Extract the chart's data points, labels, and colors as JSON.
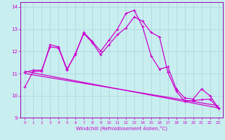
{
  "title": "",
  "xlabel": "Windchill (Refroidissement éolien,°C)",
  "ylabel": "",
  "bg_color": "#c8eef0",
  "grid_color": "#b0d8dc",
  "line_color": "#cc00cc",
  "spine_color": "#9900aa",
  "xlim": [
    -0.5,
    23.5
  ],
  "ylim": [
    9,
    14.2
  ],
  "yticks": [
    9,
    10,
    11,
    12,
    13,
    14
  ],
  "xticks": [
    0,
    1,
    2,
    3,
    4,
    5,
    6,
    7,
    8,
    9,
    10,
    11,
    12,
    13,
    14,
    15,
    16,
    17,
    18,
    19,
    20,
    21,
    22,
    23
  ],
  "series1_x": [
    0,
    1,
    2,
    3,
    4,
    5,
    6,
    7,
    8,
    9,
    10,
    11,
    12,
    13,
    14,
    15,
    16,
    17,
    18,
    19,
    20,
    21,
    22,
    23
  ],
  "series1_y": [
    10.4,
    11.1,
    11.1,
    12.3,
    12.2,
    11.2,
    11.85,
    12.85,
    12.45,
    12.0,
    12.5,
    13.0,
    13.7,
    13.85,
    13.1,
    11.8,
    11.2,
    11.3,
    10.3,
    9.9,
    9.85,
    10.3,
    10.0,
    9.45
  ],
  "series2_x": [
    0,
    1,
    2,
    3,
    4,
    5,
    6,
    7,
    8,
    9,
    10,
    11,
    12,
    13,
    14,
    15,
    16,
    17,
    18,
    19,
    20,
    21,
    22,
    23
  ],
  "series2_y": [
    11.05,
    11.15,
    11.15,
    12.2,
    12.15,
    11.15,
    11.9,
    12.8,
    12.4,
    11.85,
    12.3,
    12.75,
    13.05,
    13.55,
    13.35,
    12.85,
    12.65,
    11.05,
    10.2,
    9.75,
    9.78,
    9.82,
    9.85,
    9.42
  ],
  "series3_x": [
    0,
    23
  ],
  "series3_y": [
    11.1,
    9.45
  ],
  "series4_x": [
    0,
    23
  ],
  "series4_y": [
    11.0,
    9.55
  ]
}
